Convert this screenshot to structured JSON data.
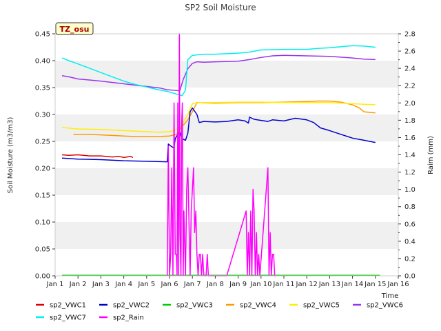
{
  "chart_data": {
    "type": "line",
    "title": "SP2 Soil Moisture",
    "badge": "TZ_osu",
    "xlabel": "Time",
    "ylabel": "Soil Moisture (m3/m3)",
    "y2label": "Raim (mm)",
    "xlim": [
      1,
      16
    ],
    "ylim": [
      0,
      0.45
    ],
    "y2lim": [
      0,
      2.8
    ],
    "x_ticks": [
      1,
      2,
      3,
      4,
      5,
      6,
      7,
      8,
      9,
      10,
      11,
      12,
      13,
      14,
      15,
      16
    ],
    "x_tick_labels": [
      "Jan 1",
      "Jan 2",
      "Jan 3",
      "Jan 4",
      "Jan 5",
      "Jan 6",
      "Jan 7",
      "Jan 8",
      "Jan 9",
      "Jan 10",
      "Jan 11",
      "Jan 12",
      "Jan 13",
      "Jan 14",
      "Jan 15",
      "Jan 16"
    ],
    "y_ticks": [
      "0.00",
      "0.05",
      "0.10",
      "0.15",
      "0.20",
      "0.25",
      "0.30",
      "0.35",
      "0.40",
      "0.45"
    ],
    "y2_ticks": [
      "0.0",
      "0.2",
      "0.4",
      "0.6",
      "0.8",
      "1.0",
      "1.2",
      "1.4",
      "1.6",
      "1.8",
      "2.0",
      "2.2",
      "2.4",
      "2.6",
      "2.8"
    ],
    "grid": "horizontal bands",
    "legend_position": "bottom",
    "series": [
      {
        "name": "sp2_VWC1",
        "color": "#dd0000",
        "axis": "left",
        "x": [
          1.3,
          1.6,
          2.0,
          2.5,
          3.0,
          3.5,
          3.8,
          4.0,
          4.3,
          4.4
        ],
        "y": [
          0.225,
          0.224,
          0.225,
          0.223,
          0.223,
          0.221,
          0.222,
          0.22,
          0.222,
          0.22
        ]
      },
      {
        "name": "sp2_VWC2",
        "color": "#0000cc",
        "axis": "left",
        "x": [
          1.3,
          2.0,
          3.0,
          4.0,
          5.0,
          5.9,
          5.95,
          6.1,
          6.2,
          6.25,
          6.35,
          6.45,
          6.55,
          6.7,
          6.8,
          6.9,
          7.0,
          7.2,
          7.3,
          7.5,
          8.0,
          8.5,
          9.0,
          9.3,
          9.45,
          9.5,
          9.6,
          9.7,
          10.0,
          10.3,
          10.5,
          11.0,
          11.3,
          11.5,
          12.0,
          12.3,
          12.6,
          13.0,
          13.5,
          14.0,
          14.5,
          15.0
        ],
        "y": [
          0.219,
          0.217,
          0.216,
          0.214,
          0.213,
          0.212,
          0.245,
          0.24,
          0.238,
          0.255,
          0.262,
          0.268,
          0.255,
          0.252,
          0.265,
          0.305,
          0.312,
          0.3,
          0.285,
          0.287,
          0.286,
          0.287,
          0.29,
          0.288,
          0.284,
          0.295,
          0.293,
          0.291,
          0.289,
          0.287,
          0.29,
          0.288,
          0.291,
          0.293,
          0.29,
          0.285,
          0.275,
          0.27,
          0.263,
          0.256,
          0.252,
          0.248
        ]
      },
      {
        "name": "sp2_VWC3",
        "color": "#00cc00",
        "axis": "left",
        "x": [
          1.3,
          15.2
        ],
        "y": [
          0.001,
          0.001
        ]
      },
      {
        "name": "sp2_VWC4",
        "color": "#ff9900",
        "axis": "left",
        "x": [
          1.8,
          2.5,
          3.0,
          3.5,
          4.0,
          4.5,
          5.0,
          5.5,
          6.0,
          6.3,
          6.5,
          6.8,
          7.0,
          7.2,
          8.0,
          9.0,
          10.0,
          11.0,
          12.0,
          12.5,
          13.0,
          13.5,
          14.0,
          14.3,
          14.5,
          15.0
        ],
        "y": [
          0.263,
          0.263,
          0.262,
          0.261,
          0.26,
          0.259,
          0.259,
          0.259,
          0.26,
          0.263,
          0.275,
          0.29,
          0.305,
          0.322,
          0.321,
          0.322,
          0.322,
          0.323,
          0.324,
          0.325,
          0.325,
          0.323,
          0.318,
          0.312,
          0.305,
          0.303
        ]
      },
      {
        "name": "sp2_VWC5",
        "color": "#ffee00",
        "axis": "left",
        "x": [
          1.3,
          2.0,
          3.0,
          4.0,
          5.0,
          5.5,
          6.0,
          6.2,
          6.5,
          6.8,
          7.0,
          7.3,
          8.0,
          9.0,
          10.0,
          11.0,
          12.0,
          13.0,
          14.0,
          15.0
        ],
        "y": [
          0.276,
          0.273,
          0.272,
          0.27,
          0.268,
          0.267,
          0.268,
          0.27,
          0.278,
          0.3,
          0.32,
          0.322,
          0.322,
          0.323,
          0.323,
          0.322,
          0.322,
          0.322,
          0.32,
          0.318
        ]
      },
      {
        "name": "sp2_VWC6",
        "color": "#9933ee",
        "axis": "left",
        "x": [
          1.3,
          1.6,
          2.0,
          3.0,
          4.0,
          5.0,
          5.6,
          5.9,
          6.2,
          6.45,
          6.6,
          6.8,
          7.0,
          7.2,
          7.5,
          8.0,
          9.0,
          9.5,
          10.0,
          10.5,
          11.0,
          12.0,
          13.0,
          14.0,
          14.5,
          15.0
        ],
        "y": [
          0.372,
          0.37,
          0.366,
          0.362,
          0.357,
          0.352,
          0.349,
          0.346,
          0.345,
          0.344,
          0.365,
          0.385,
          0.395,
          0.398,
          0.397,
          0.398,
          0.399,
          0.402,
          0.406,
          0.409,
          0.41,
          0.409,
          0.408,
          0.405,
          0.403,
          0.402
        ]
      },
      {
        "name": "sp2_VWC7",
        "color": "#00eeee",
        "axis": "left",
        "x": [
          1.3,
          1.6,
          2.0,
          2.5,
          3.0,
          3.5,
          4.0,
          4.5,
          5.0,
          5.5,
          5.9,
          6.3,
          6.55,
          6.7,
          6.8,
          7.0,
          7.5,
          8.0,
          8.5,
          9.0,
          9.5,
          10.0,
          11.0,
          12.0,
          12.5,
          13.0,
          13.5,
          14.0,
          14.5,
          15.0
        ],
        "y": [
          0.405,
          0.4,
          0.394,
          0.386,
          0.378,
          0.37,
          0.362,
          0.356,
          0.351,
          0.346,
          0.343,
          0.338,
          0.335,
          0.345,
          0.402,
          0.41,
          0.412,
          0.412,
          0.413,
          0.414,
          0.416,
          0.42,
          0.421,
          0.421,
          0.423,
          0.424,
          0.426,
          0.428,
          0.427,
          0.425
        ]
      },
      {
        "name": "sp2_Rain",
        "color": "#ff00ff",
        "axis": "right",
        "x": [
          5.9,
          5.95,
          6.0,
          6.05,
          6.1,
          6.15,
          6.2,
          6.25,
          6.3,
          6.33,
          6.36,
          6.4,
          6.43,
          6.46,
          6.5,
          6.53,
          6.56,
          6.6,
          6.63,
          6.7,
          6.75,
          6.8,
          6.9,
          6.95,
          7.0,
          7.05,
          7.1,
          7.15,
          7.2,
          7.25,
          7.3,
          7.35,
          7.4,
          7.45,
          7.5,
          7.55,
          7.6,
          7.65,
          7.7,
          7.75,
          8.3,
          8.5,
          9.35,
          9.4,
          9.45,
          9.5,
          9.55,
          9.6,
          9.65,
          9.7,
          9.75,
          9.8,
          9.85,
          9.9,
          9.95,
          10.3,
          10.35,
          10.4,
          10.45,
          10.5,
          10.55,
          10.6,
          10.65
        ],
        "y": [
          0.0,
          1.5,
          0.0,
          0.25,
          1.25,
          0.0,
          2.0,
          0.25,
          0.25,
          0.0,
          2.0,
          0.0,
          2.8,
          0.5,
          0.0,
          1.75,
          2.0,
          0.0,
          0.75,
          0.0,
          1.0,
          1.25,
          0.0,
          0.75,
          1.0,
          1.25,
          0.5,
          0.75,
          0.25,
          0.0,
          0.25,
          0.25,
          0.0,
          0.25,
          0.0,
          0.0,
          0.0,
          0.25,
          0.0,
          0.0,
          0.0,
          0.0,
          0.75,
          0.0,
          0.5,
          0.0,
          0.75,
          0.0,
          1.0,
          0.75,
          0.0,
          0.5,
          0.0,
          0.25,
          0.0,
          1.25,
          0.0,
          0.5,
          0.0,
          0.25,
          0.25,
          0.0,
          0.0
        ]
      }
    ]
  }
}
